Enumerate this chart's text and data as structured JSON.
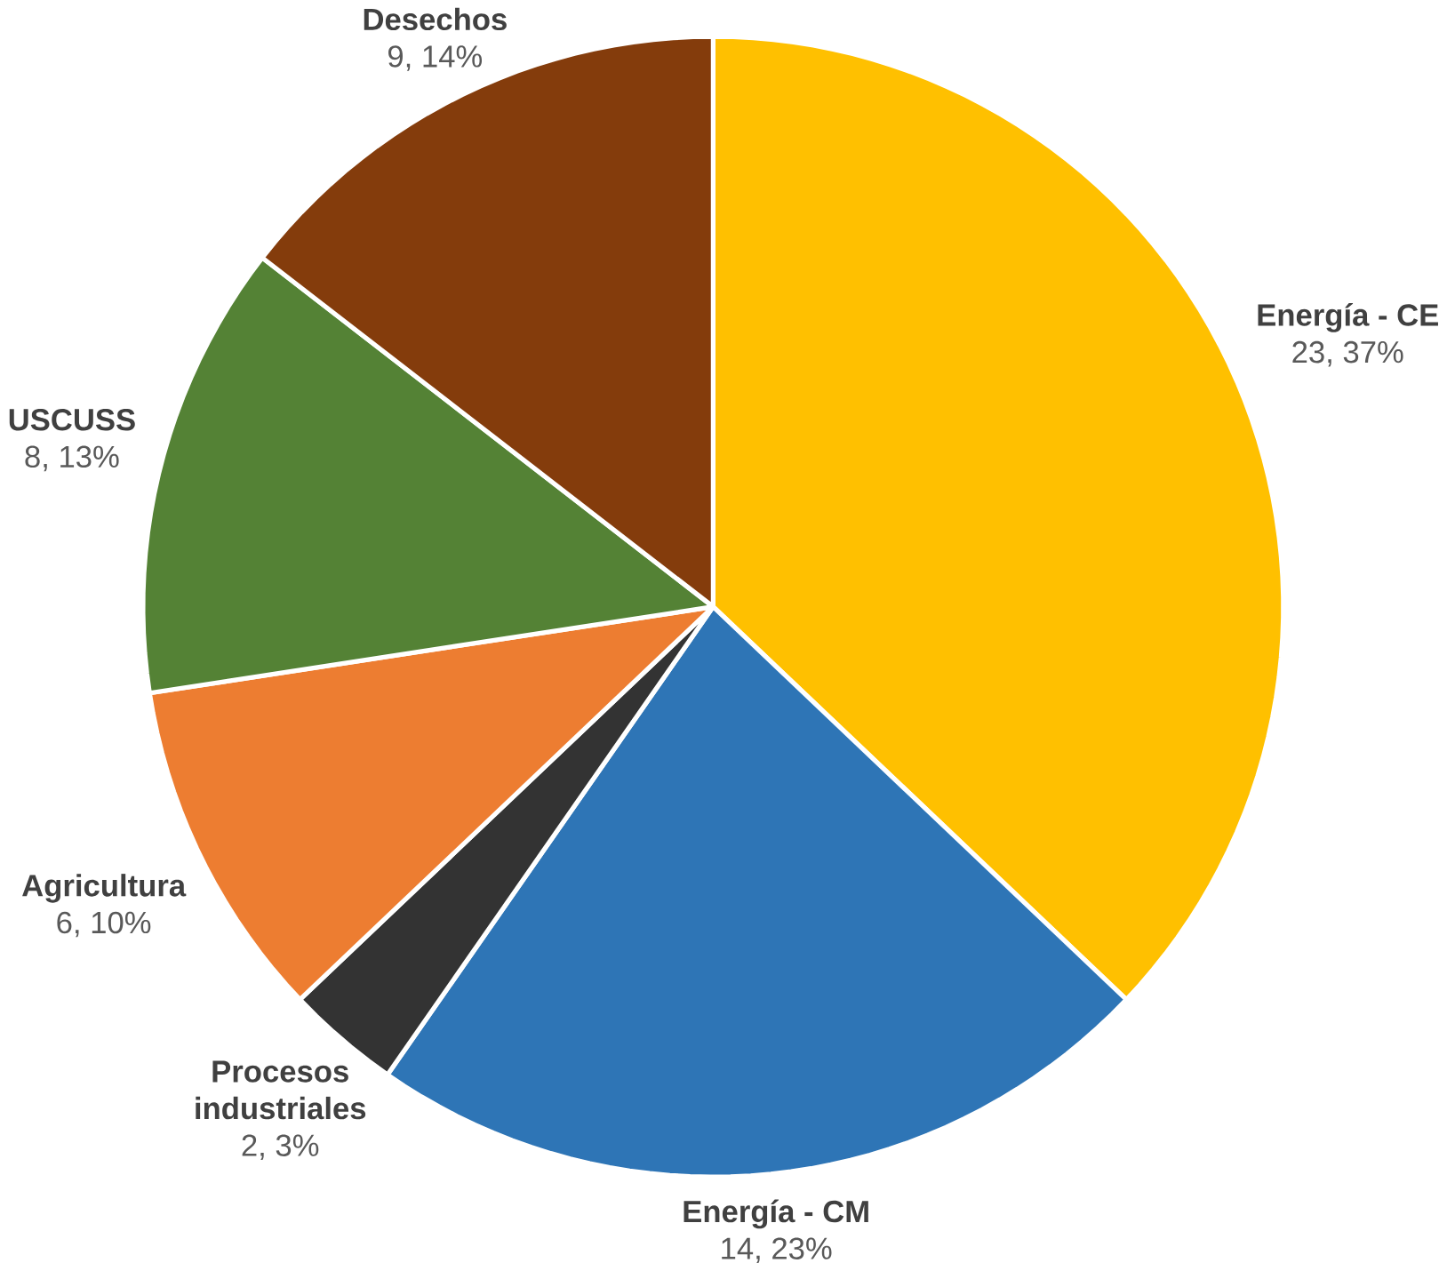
{
  "chart_data": {
    "type": "pie",
    "categories": [
      "Energía - CE",
      "Energía - CM",
      "Procesos industriales",
      "Agricultura",
      "USCUSS",
      "Desechos"
    ],
    "values": [
      23,
      14,
      2,
      6,
      8,
      9
    ],
    "colors": [
      "#ffc000",
      "#2e75b6",
      "#333333",
      "#ed7d31",
      "#548235",
      "#843c0c"
    ],
    "value_labels": [
      "23, 37%",
      "14, 23%",
      "2, 3%",
      "6, 10%",
      "8, 13%",
      "9, 14%"
    ]
  }
}
